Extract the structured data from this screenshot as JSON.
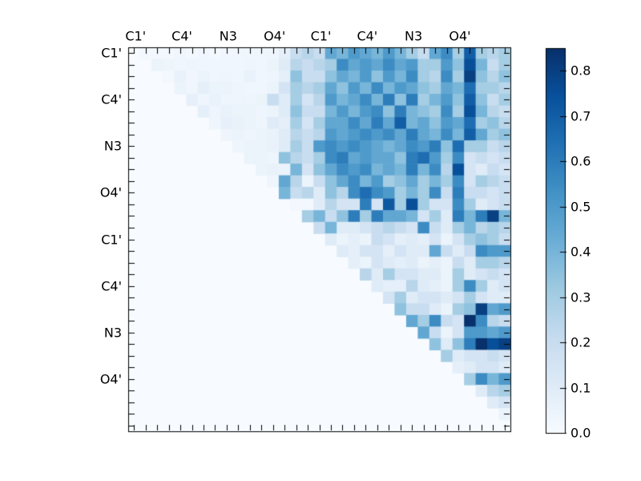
{
  "chart_data": {
    "type": "heatmap",
    "title": "",
    "description": "Upper-triangular pairwise matrix rendered with a Blues colormap, lower triangle empty (zero)",
    "n": 33,
    "x_tick_labels": [
      "C1'",
      "C4'",
      "N3",
      "O4'",
      "C1'",
      "C4'",
      "N3",
      "O4'"
    ],
    "y_tick_labels": [
      "C1'",
      "C4'",
      "N3",
      "O4'",
      "C1'",
      "C4'",
      "N3",
      "O4'"
    ],
    "label_cell_indices": [
      0,
      4,
      8,
      12,
      16,
      20,
      24,
      28
    ],
    "vmin": 0.0,
    "vmax": 0.85,
    "grid": false,
    "legend_position": "colorbar-right",
    "colormap": "Blues",
    "colormap_stops": [
      {
        "pos": 0.0,
        "color": "#f7fbff"
      },
      {
        "pos": 0.125,
        "color": "#deebf7"
      },
      {
        "pos": 0.25,
        "color": "#c6dbef"
      },
      {
        "pos": 0.375,
        "color": "#9ecae1"
      },
      {
        "pos": 0.5,
        "color": "#6baed6"
      },
      {
        "pos": 0.625,
        "color": "#4292c6"
      },
      {
        "pos": 0.75,
        "color": "#2171b5"
      },
      {
        "pos": 0.875,
        "color": "#08519c"
      },
      {
        "pos": 1.0,
        "color": "#08306b"
      }
    ],
    "colorbar_tick_labels": [
      "0.0",
      "0.1",
      "0.2",
      "0.3",
      "0.4",
      "0.5",
      "0.6",
      "0.7",
      "0.8"
    ],
    "frame_color": "#000000",
    "background_color": "#ffffff",
    "matrix": [
      [
        0,
        0.02,
        0.02,
        0.02,
        0.03,
        0.02,
        0.03,
        0.02,
        0.03,
        0.03,
        0.03,
        0.03,
        0.04,
        0.08,
        0.2,
        0.25,
        0.2,
        0.45,
        0.4,
        0.5,
        0.45,
        0.4,
        0.5,
        0.4,
        0.3,
        0.2,
        0.45,
        0.55,
        0.3,
        0.7,
        0.3,
        0.25,
        0.3
      ],
      [
        0,
        0,
        0.05,
        0.04,
        0.03,
        0.04,
        0.03,
        0.03,
        0.03,
        0.03,
        0.04,
        0.03,
        0.05,
        0.1,
        0.25,
        0.2,
        0.25,
        0.3,
        0.55,
        0.45,
        0.5,
        0.45,
        0.55,
        0.45,
        0.5,
        0.3,
        0.3,
        0.5,
        0.35,
        0.75,
        0.4,
        0.2,
        0.3
      ],
      [
        0,
        0,
        0,
        0.02,
        0.06,
        0.03,
        0.05,
        0.03,
        0.04,
        0.03,
        0.06,
        0.03,
        0.04,
        0.08,
        0.35,
        0.2,
        0.2,
        0.35,
        0.45,
        0.4,
        0.5,
        0.35,
        0.5,
        0.4,
        0.55,
        0.3,
        0.25,
        0.55,
        0.3,
        0.8,
        0.35,
        0.25,
        0.35
      ],
      [
        0,
        0,
        0,
        0,
        0.05,
        0.03,
        0.08,
        0.05,
        0.05,
        0.04,
        0.03,
        0.03,
        0.05,
        0.15,
        0.3,
        0.25,
        0.3,
        0.45,
        0.35,
        0.5,
        0.4,
        0.55,
        0.4,
        0.5,
        0.45,
        0.35,
        0.3,
        0.45,
        0.4,
        0.65,
        0.3,
        0.3,
        0.25
      ],
      [
        0,
        0,
        0,
        0,
        0,
        0.07,
        0.04,
        0.06,
        0.04,
        0.04,
        0.04,
        0.05,
        0.2,
        0.1,
        0.3,
        0.15,
        0.25,
        0.5,
        0.4,
        0.45,
        0.55,
        0.4,
        0.6,
        0.35,
        0.6,
        0.3,
        0.4,
        0.5,
        0.35,
        0.7,
        0.35,
        0.2,
        0.3
      ],
      [
        0,
        0,
        0,
        0,
        0,
        0,
        0.08,
        0.04,
        0.06,
        0.05,
        0.05,
        0.04,
        0.05,
        0.1,
        0.35,
        0.2,
        0.2,
        0.4,
        0.5,
        0.4,
        0.5,
        0.55,
        0.35,
        0.6,
        0.4,
        0.35,
        0.3,
        0.55,
        0.3,
        0.75,
        0.4,
        0.25,
        0.2
      ],
      [
        0,
        0,
        0,
        0,
        0,
        0,
        0,
        0.04,
        0.07,
        0.06,
        0.05,
        0.04,
        0.1,
        0.08,
        0.3,
        0.15,
        0.3,
        0.45,
        0.45,
        0.55,
        0.45,
        0.6,
        0.45,
        0.7,
        0.4,
        0.45,
        0.35,
        0.5,
        0.45,
        0.65,
        0.3,
        0.35,
        0.25
      ],
      [
        0,
        0,
        0,
        0,
        0,
        0,
        0,
        0,
        0.04,
        0.05,
        0.04,
        0.05,
        0.06,
        0.1,
        0.25,
        0.2,
        0.25,
        0.5,
        0.45,
        0.5,
        0.55,
        0.5,
        0.55,
        0.45,
        0.6,
        0.45,
        0.4,
        0.55,
        0.4,
        0.7,
        0.45,
        0.3,
        0.35
      ],
      [
        0,
        0,
        0,
        0,
        0,
        0,
        0,
        0,
        0,
        0.04,
        0.05,
        0.05,
        0.06,
        0.1,
        0.3,
        0.2,
        0.5,
        0.55,
        0.5,
        0.55,
        0.5,
        0.45,
        0.4,
        0.45,
        0.55,
        0.5,
        0.6,
        0.35,
        0.65,
        0.3,
        0.3,
        0.2,
        0.25
      ],
      [
        0,
        0,
        0,
        0,
        0,
        0,
        0,
        0,
        0,
        0,
        0.05,
        0.05,
        0.04,
        0.35,
        0.25,
        0.2,
        0.3,
        0.55,
        0.6,
        0.45,
        0.5,
        0.45,
        0.45,
        0.35,
        0.6,
        0.65,
        0.5,
        0.3,
        0.55,
        0.15,
        0.2,
        0.15,
        0.2
      ],
      [
        0,
        0,
        0,
        0,
        0,
        0,
        0,
        0,
        0,
        0,
        0,
        0.05,
        0.06,
        0.05,
        0.4,
        0.15,
        0.35,
        0.45,
        0.55,
        0.5,
        0.55,
        0.4,
        0.45,
        0.4,
        0.6,
        0.4,
        0.55,
        0.25,
        0.75,
        0.15,
        0.1,
        0.2,
        0.15
      ],
      [
        0,
        0,
        0,
        0,
        0,
        0,
        0,
        0,
        0,
        0,
        0,
        0,
        0.04,
        0.45,
        0.25,
        0.05,
        0.2,
        0.35,
        0.45,
        0.55,
        0.4,
        0.5,
        0.3,
        0.35,
        0.45,
        0.3,
        0.4,
        0.3,
        0.55,
        0.15,
        0.3,
        0.25,
        0.2
      ],
      [
        0,
        0,
        0,
        0,
        0,
        0,
        0,
        0,
        0,
        0,
        0,
        0,
        0,
        0.4,
        0.2,
        0.25,
        0.1,
        0.35,
        0.25,
        0.55,
        0.65,
        0.55,
        0.5,
        0.3,
        0.4,
        0.3,
        0.55,
        0.2,
        0.6,
        0.2,
        0.2,
        0.15,
        0.2
      ],
      [
        0,
        0,
        0,
        0,
        0,
        0,
        0,
        0,
        0,
        0,
        0,
        0,
        0,
        0,
        0.02,
        0.02,
        0.1,
        0.25,
        0.15,
        0.15,
        0.6,
        0.15,
        0.72,
        0.3,
        0.75,
        0.3,
        0.15,
        0.15,
        0.55,
        0.3,
        0.1,
        0.15,
        0.2
      ],
      [
        0,
        0,
        0,
        0,
        0,
        0,
        0,
        0,
        0,
        0,
        0,
        0,
        0,
        0,
        0,
        0.3,
        0.4,
        0.2,
        0.35,
        0.6,
        0.3,
        0.6,
        0.45,
        0.45,
        0.4,
        0.15,
        0.3,
        0.1,
        0.6,
        0.4,
        0.6,
        0.8,
        0.4
      ],
      [
        0,
        0,
        0,
        0,
        0,
        0,
        0,
        0,
        0,
        0,
        0,
        0,
        0,
        0,
        0,
        0,
        0.2,
        0.4,
        0.1,
        0.1,
        0.15,
        0.2,
        0.25,
        0.2,
        0.15,
        0.55,
        0.2,
        0.1,
        0.3,
        0.4,
        0.25,
        0.3,
        0.25
      ],
      [
        0,
        0,
        0,
        0,
        0,
        0,
        0,
        0,
        0,
        0,
        0,
        0,
        0,
        0,
        0,
        0,
        0,
        0.1,
        0.05,
        0.08,
        0.05,
        0.2,
        0.15,
        0.08,
        0.1,
        0.08,
        0.15,
        0.05,
        0.15,
        0.3,
        0.35,
        0.3,
        0.2
      ],
      [
        0,
        0,
        0,
        0,
        0,
        0,
        0,
        0,
        0,
        0,
        0,
        0,
        0,
        0,
        0,
        0,
        0,
        0,
        0.1,
        0.08,
        0.15,
        0.15,
        0.08,
        0.15,
        0.1,
        0.1,
        0.45,
        0.2,
        0.1,
        0.2,
        0.55,
        0.5,
        0.5
      ],
      [
        0,
        0,
        0,
        0,
        0,
        0,
        0,
        0,
        0,
        0,
        0,
        0,
        0,
        0,
        0,
        0,
        0,
        0,
        0,
        0.08,
        0.05,
        0.15,
        0.1,
        0.08,
        0.1,
        0.05,
        0.08,
        0.05,
        0.2,
        0.1,
        0.3,
        0.3,
        0.25
      ],
      [
        0,
        0,
        0,
        0,
        0,
        0,
        0,
        0,
        0,
        0,
        0,
        0,
        0,
        0,
        0,
        0,
        0,
        0,
        0,
        0,
        0.25,
        0.1,
        0.3,
        0.15,
        0.15,
        0.1,
        0.1,
        0.05,
        0.3,
        0.1,
        0.15,
        0.2,
        0.15
      ],
      [
        0,
        0,
        0,
        0,
        0,
        0,
        0,
        0,
        0,
        0,
        0,
        0,
        0,
        0,
        0,
        0,
        0,
        0,
        0,
        0,
        0,
        0.1,
        0.08,
        0.08,
        0.25,
        0.1,
        0.08,
        0.05,
        0.3,
        0.55,
        0.3,
        0.1,
        0.15
      ],
      [
        0,
        0,
        0,
        0,
        0,
        0,
        0,
        0,
        0,
        0,
        0,
        0,
        0,
        0,
        0,
        0,
        0,
        0,
        0,
        0,
        0,
        0,
        0.15,
        0.3,
        0.1,
        0.15,
        0.15,
        0.1,
        0.15,
        0.3,
        0.15,
        0.1,
        0.1
      ],
      [
        0,
        0,
        0,
        0,
        0,
        0,
        0,
        0,
        0,
        0,
        0,
        0,
        0,
        0,
        0,
        0,
        0,
        0,
        0,
        0,
        0,
        0,
        0,
        0.35,
        0.2,
        0.2,
        0.1,
        0.05,
        0.3,
        0.35,
        0.8,
        0.45,
        0.5
      ],
      [
        0,
        0,
        0,
        0,
        0,
        0,
        0,
        0,
        0,
        0,
        0,
        0,
        0,
        0,
        0,
        0,
        0,
        0,
        0,
        0,
        0,
        0,
        0,
        0,
        0.45,
        0.3,
        0.55,
        0.2,
        0.15,
        0.85,
        0.55,
        0.25,
        0.2
      ],
      [
        0,
        0,
        0,
        0,
        0,
        0,
        0,
        0,
        0,
        0,
        0,
        0,
        0,
        0,
        0,
        0,
        0,
        0,
        0,
        0,
        0,
        0,
        0,
        0,
        0,
        0.45,
        0.2,
        0.05,
        0.15,
        0.5,
        0.5,
        0.45,
        0.5
      ],
      [
        0,
        0,
        0,
        0,
        0,
        0,
        0,
        0,
        0,
        0,
        0,
        0,
        0,
        0,
        0,
        0,
        0,
        0,
        0,
        0,
        0,
        0,
        0,
        0,
        0,
        0,
        0.35,
        0.1,
        0.35,
        0.6,
        0.85,
        0.75,
        0.8
      ],
      [
        0,
        0,
        0,
        0,
        0,
        0,
        0,
        0,
        0,
        0,
        0,
        0,
        0,
        0,
        0,
        0,
        0,
        0,
        0,
        0,
        0,
        0,
        0,
        0,
        0,
        0,
        0,
        0.3,
        0.1,
        0.15,
        0.15,
        0.2,
        0.15
      ],
      [
        0,
        0,
        0,
        0,
        0,
        0,
        0,
        0,
        0,
        0,
        0,
        0,
        0,
        0,
        0,
        0,
        0,
        0,
        0,
        0,
        0,
        0,
        0,
        0,
        0,
        0,
        0,
        0,
        0.08,
        0.1,
        0.15,
        0.15,
        0.1
      ],
      [
        0,
        0,
        0,
        0,
        0,
        0,
        0,
        0,
        0,
        0,
        0,
        0,
        0,
        0,
        0,
        0,
        0,
        0,
        0,
        0,
        0,
        0,
        0,
        0,
        0,
        0,
        0,
        0,
        0,
        0.3,
        0.55,
        0.4,
        0.5
      ],
      [
        0,
        0,
        0,
        0,
        0,
        0,
        0,
        0,
        0,
        0,
        0,
        0,
        0,
        0,
        0,
        0,
        0,
        0,
        0,
        0,
        0,
        0,
        0,
        0,
        0,
        0,
        0,
        0,
        0,
        0,
        0.1,
        0.25,
        0.3
      ],
      [
        0,
        0,
        0,
        0,
        0,
        0,
        0,
        0,
        0,
        0,
        0,
        0,
        0,
        0,
        0,
        0,
        0,
        0,
        0,
        0,
        0,
        0,
        0,
        0,
        0,
        0,
        0,
        0,
        0,
        0,
        0,
        0.1,
        0.15
      ],
      [
        0,
        0,
        0,
        0,
        0,
        0,
        0,
        0,
        0,
        0,
        0,
        0,
        0,
        0,
        0,
        0,
        0,
        0,
        0,
        0,
        0,
        0,
        0,
        0,
        0,
        0,
        0,
        0,
        0,
        0,
        0,
        0,
        0.05
      ],
      [
        0,
        0,
        0,
        0,
        0,
        0,
        0,
        0,
        0,
        0,
        0,
        0,
        0,
        0,
        0,
        0,
        0,
        0,
        0,
        0,
        0,
        0,
        0,
        0,
        0,
        0,
        0,
        0,
        0,
        0,
        0,
        0,
        0
      ]
    ]
  }
}
